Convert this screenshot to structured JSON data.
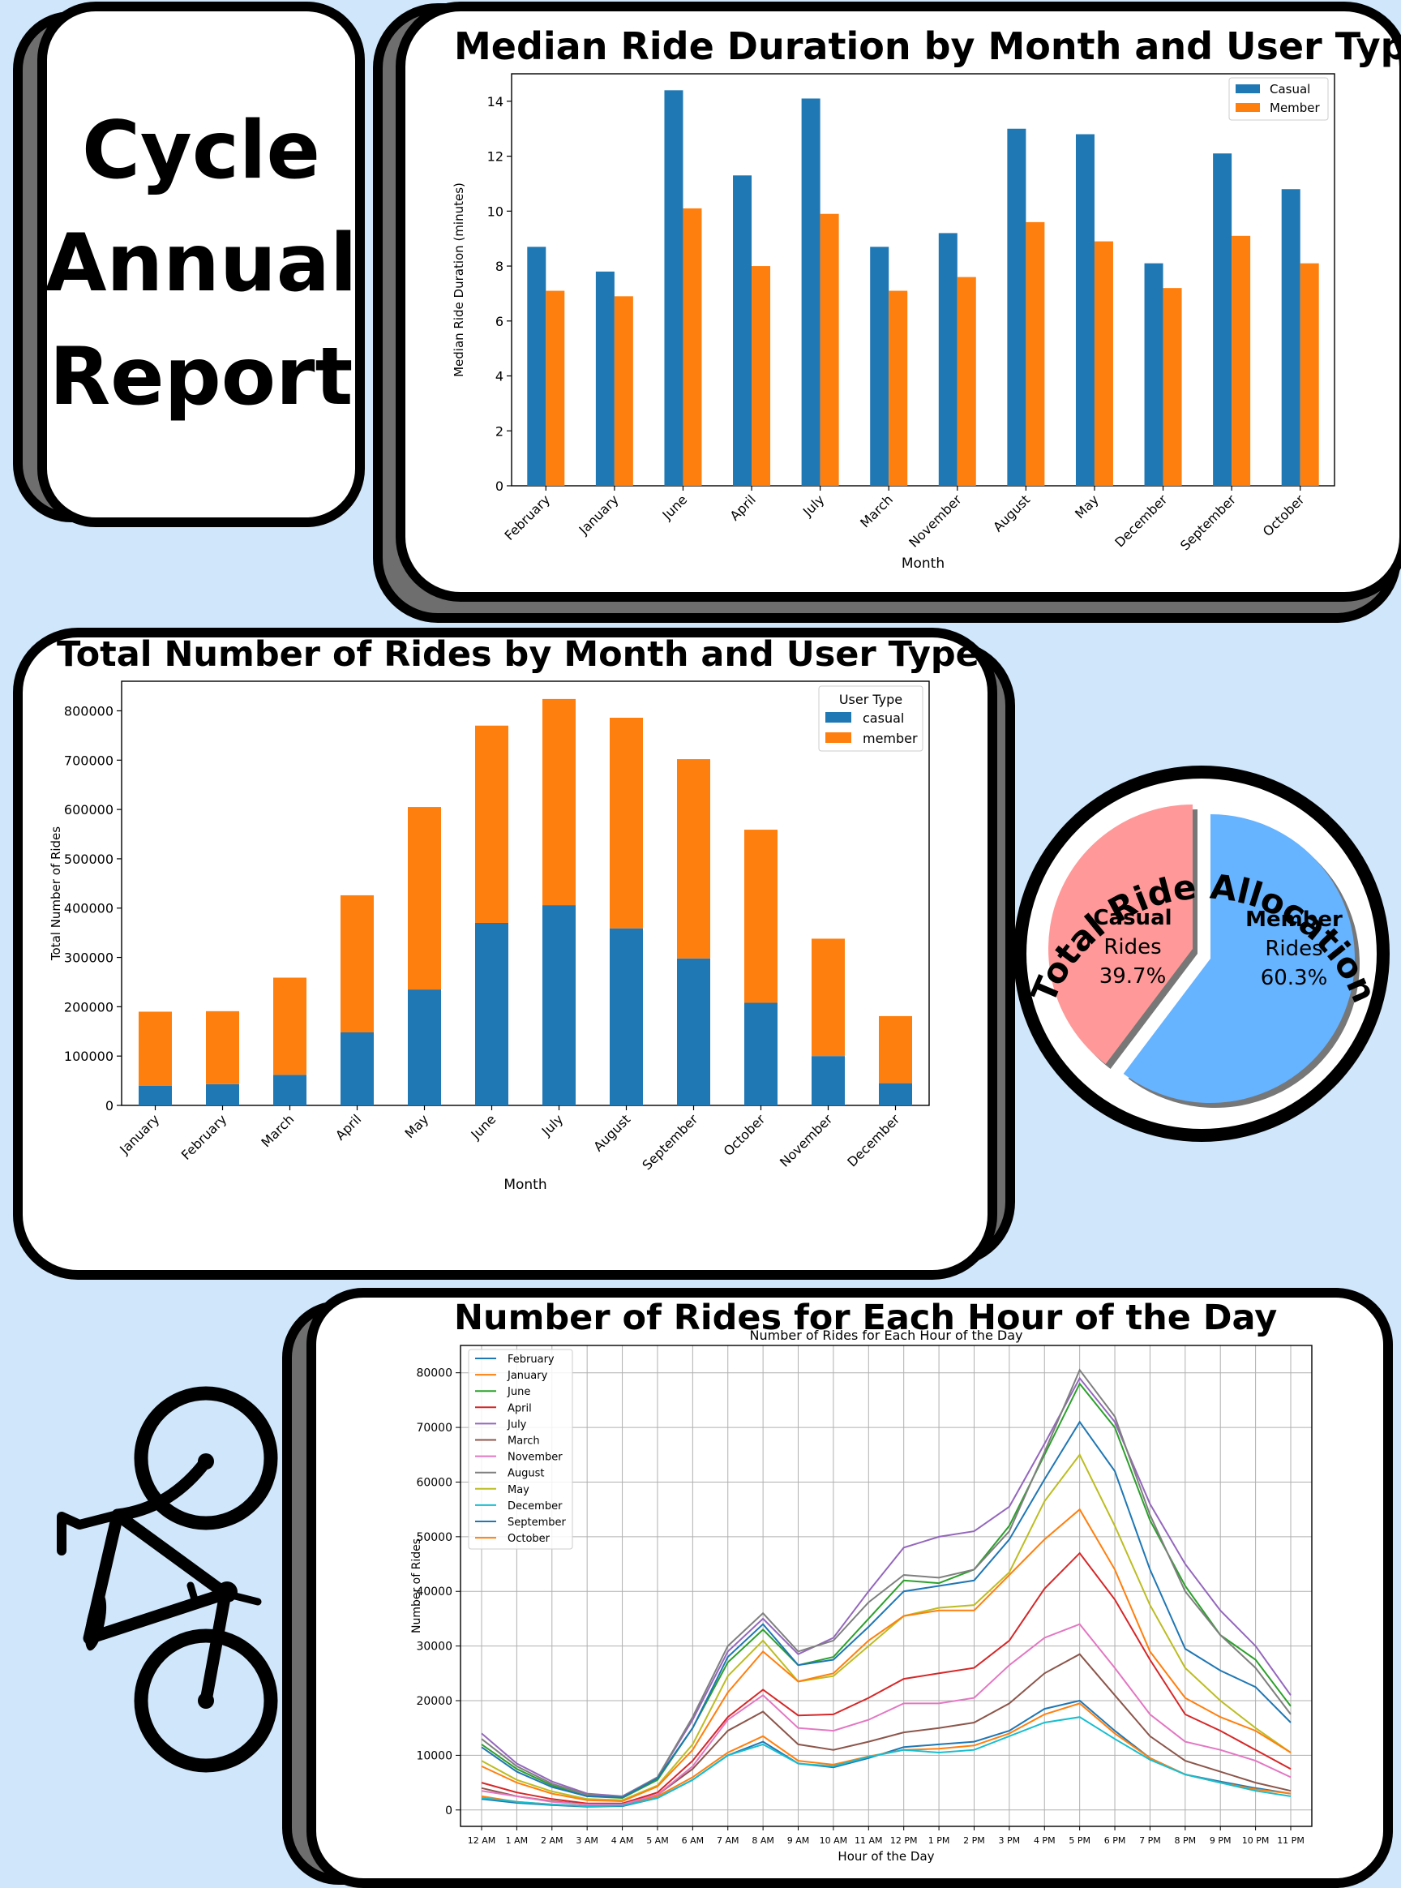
{
  "report_title": [
    "Cycle",
    "Annual",
    "Report"
  ],
  "colors": {
    "background": "#cfe6fb",
    "casual": "#1f77b4",
    "member": "#ff7f0e",
    "pie_casual": "#ff9999",
    "pie_member": "#66b3ff"
  },
  "chart_data": [
    {
      "id": "median",
      "type": "bar",
      "title": "Median Ride Duration by Month and User Type",
      "xlabel": "Month",
      "ylabel": "Median Ride Duration (minutes)",
      "ylim": [
        0,
        15
      ],
      "yticks": [
        0,
        2,
        4,
        6,
        8,
        10,
        12,
        14
      ],
      "categories": [
        "February",
        "January",
        "June",
        "April",
        "July",
        "March",
        "November",
        "August",
        "May",
        "December",
        "September",
        "October"
      ],
      "legend_position": "top-right",
      "series": [
        {
          "name": "Casual",
          "values": [
            8.7,
            7.8,
            14.4,
            11.3,
            14.1,
            8.7,
            9.2,
            13.0,
            12.8,
            8.1,
            12.1,
            10.8
          ]
        },
        {
          "name": "Member",
          "values": [
            7.1,
            6.9,
            10.1,
            8.0,
            9.9,
            7.1,
            7.6,
            9.6,
            8.9,
            7.2,
            9.1,
            8.1
          ]
        }
      ]
    },
    {
      "id": "total",
      "type": "bar",
      "stacked": true,
      "title": "Total Number of Rides by Month and User Type",
      "xlabel": "Month",
      "ylabel": "Total Number of Rides",
      "ylim": [
        0,
        860000
      ],
      "yticks": [
        0,
        100000,
        200000,
        300000,
        400000,
        500000,
        600000,
        700000,
        800000
      ],
      "categories": [
        "January",
        "February",
        "March",
        "April",
        "May",
        "June",
        "July",
        "August",
        "September",
        "October",
        "November",
        "December"
      ],
      "legend_title": "User Type",
      "legend_position": "top-right",
      "series": [
        {
          "name": "casual",
          "values": [
            40000,
            43000,
            62000,
            148000,
            235000,
            370000,
            406000,
            359000,
            298000,
            208000,
            100000,
            45000
          ]
        },
        {
          "name": "member",
          "values": [
            150000,
            148000,
            197000,
            278000,
            370000,
            400000,
            418000,
            427000,
            404000,
            351000,
            238000,
            136000
          ]
        }
      ]
    },
    {
      "id": "pie",
      "type": "pie",
      "title": "Total Ride Allocation",
      "slices": [
        {
          "name": "Casual",
          "sub": "Rides",
          "value": 39.7,
          "label": "39.7%"
        },
        {
          "name": "Member",
          "sub": "Rides",
          "value": 60.3,
          "label": "60.3%"
        }
      ]
    },
    {
      "id": "hourly",
      "type": "line",
      "title": "Number of Rides for Each Hour of the Day",
      "inner_title": "Number of Rides for Each Hour of the Day",
      "xlabel": "Hour of the Day",
      "ylabel": "Number of Rides",
      "ylim": [
        -3000,
        85000
      ],
      "yticks": [
        0,
        10000,
        20000,
        30000,
        40000,
        50000,
        60000,
        70000,
        80000
      ],
      "grid": true,
      "legend_position": "top-left",
      "x": [
        "12 AM",
        "1 AM",
        "2 AM",
        "3 AM",
        "4 AM",
        "5 AM",
        "6 AM",
        "7 AM",
        "8 AM",
        "9 AM",
        "10 AM",
        "11 AM",
        "12 PM",
        "1 PM",
        "2 PM",
        "3 PM",
        "4 PM",
        "5 PM",
        "6 PM",
        "7 PM",
        "8 PM",
        "9 PM",
        "10 PM",
        "11 PM"
      ],
      "series": [
        {
          "name": "February",
          "color": "#1f77b4",
          "values": [
            2000,
            1300,
            900,
            600,
            700,
            2200,
            5500,
            10000,
            12500,
            8500,
            7800,
            9500,
            11500,
            12000,
            12500,
            14500,
            18500,
            20000,
            14500,
            9500,
            6500,
            5200,
            4000,
            3000
          ]
        },
        {
          "name": "January",
          "color": "#ff7f0e",
          "values": [
            2500,
            1500,
            1000,
            700,
            800,
            2500,
            6000,
            10500,
            13500,
            9000,
            8300,
            9800,
            11000,
            11200,
            11800,
            14000,
            17500,
            19500,
            14000,
            9500,
            6500,
            5000,
            3800,
            3000
          ]
        },
        {
          "name": "June",
          "color": "#2ca02c",
          "values": [
            12000,
            7500,
            4500,
            2500,
            2200,
            5500,
            15000,
            27000,
            33000,
            26500,
            28000,
            35000,
            42000,
            41500,
            44000,
            52000,
            65000,
            78000,
            70000,
            53000,
            41000,
            32000,
            27500,
            19000
          ]
        },
        {
          "name": "April",
          "color": "#d62728",
          "values": [
            5000,
            3200,
            2000,
            1200,
            1200,
            3200,
            9000,
            17000,
            22000,
            17300,
            17500,
            20500,
            24000,
            25000,
            26000,
            31000,
            40500,
            47000,
            38500,
            27500,
            17500,
            14500,
            11000,
            7500
          ]
        },
        {
          "name": "July",
          "color": "#9467bd",
          "values": [
            14000,
            8500,
            5200,
            3000,
            2500,
            6000,
            16500,
            29000,
            35000,
            28500,
            31500,
            40000,
            48000,
            50000,
            51000,
            55500,
            67000,
            79000,
            71000,
            56000,
            45000,
            36500,
            30000,
            21000
          ]
        },
        {
          "name": "March",
          "color": "#8c564b",
          "values": [
            4000,
            2500,
            1600,
            1000,
            1000,
            2800,
            7500,
            14500,
            18000,
            12000,
            11000,
            12500,
            14200,
            15000,
            16000,
            19500,
            25000,
            28500,
            21000,
            13500,
            9000,
            7000,
            5000,
            3500
          ]
        },
        {
          "name": "November",
          "color": "#e377c2",
          "values": [
            3500,
            2500,
            1500,
            1000,
            1000,
            2800,
            8000,
            16500,
            21000,
            15000,
            14500,
            16500,
            19500,
            19500,
            20500,
            26500,
            31500,
            34000,
            26000,
            17500,
            12500,
            11000,
            9000,
            6000
          ]
        },
        {
          "name": "August",
          "color": "#7f7f7f",
          "values": [
            13000,
            8000,
            4800,
            2800,
            2400,
            6000,
            17000,
            30000,
            36000,
            29000,
            31000,
            38000,
            43000,
            42500,
            44000,
            51000,
            65500,
            80500,
            72000,
            54000,
            40000,
            32000,
            26000,
            17500
          ]
        },
        {
          "name": "May",
          "color": "#bcbd22",
          "values": [
            9000,
            5500,
            3400,
            2000,
            1800,
            4500,
            12000,
            24500,
            31000,
            23500,
            24500,
            30000,
            35500,
            37000,
            37500,
            43500,
            56500,
            65000,
            52000,
            37500,
            26000,
            20000,
            15000,
            10500
          ]
        },
        {
          "name": "December",
          "color": "#17becf",
          "values": [
            2200,
            1500,
            1000,
            700,
            800,
            2200,
            5500,
            10000,
            12000,
            8500,
            8000,
            9700,
            11000,
            10500,
            11000,
            13500,
            16000,
            17000,
            13000,
            9200,
            6500,
            5000,
            3500,
            2500
          ]
        },
        {
          "name": "September",
          "color": "#1f77b4",
          "values": [
            11500,
            7000,
            4200,
            2500,
            2300,
            5800,
            15000,
            28000,
            34000,
            26500,
            27500,
            33500,
            40000,
            41000,
            42000,
            49500,
            60500,
            71000,
            62000,
            44000,
            29500,
            25500,
            22500,
            16000
          ]
        },
        {
          "name": "October",
          "color": "#ff7f0e",
          "values": [
            8000,
            5000,
            3000,
            1800,
            1600,
            4300,
            11000,
            21500,
            29000,
            23500,
            25000,
            31000,
            35500,
            36500,
            36500,
            43000,
            49500,
            55000,
            44000,
            29000,
            20500,
            17000,
            14500,
            10500
          ]
        }
      ]
    }
  ]
}
